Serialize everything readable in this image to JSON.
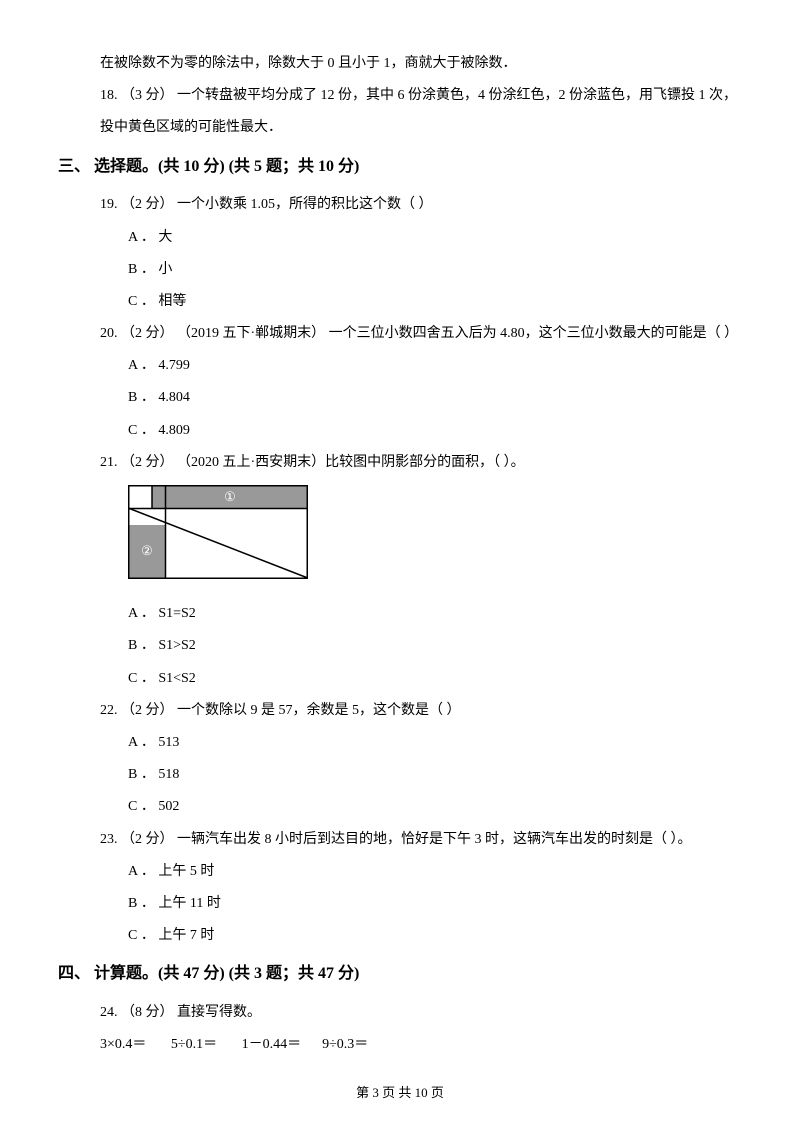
{
  "intro1": "在被除数不为零的除法中，除数大于 0 且小于 1，商就大于被除数．",
  "q18": "18.  （3 分）  一个转盘被平均分成了 12 份，其中 6 份涂黄色，4 份涂红色，2 份涂蓝色，用飞镖投 1 次，投中黄色区域的可能性最大．",
  "section3": "三、 选择题。(共 10 分)  (共 5 题；共 10 分)",
  "q19": {
    "stem": "19.  （2 分）  一个小数乘 1.05，所得的积比这个数（      ）",
    "a": "A ． 大",
    "b": "B ． 小",
    "c": "C ． 相等"
  },
  "q20": {
    "stem": "20.   （2 分）   （2019 五下·郸城期末）   一个三位小数四舍五入后为 4.80，这个三位小数最大的可能是（      ）",
    "a": "A ． 4.799",
    "b": "B ． 4.804",
    "c": "C ． 4.809"
  },
  "q21": {
    "stem": "21.  （2 分）  （2020 五上·西安期末）比较图中阴影部分的面积，（      ）。",
    "a": "A ． S1=S2",
    "b": "B ． S1>S2",
    "c": "C ． S1<S2"
  },
  "q22": {
    "stem": "22.  （2 分）  一个数除以 9 是 57，余数是 5，这个数是（      ）",
    "a": "A ． 513",
    "b": "B ． 518",
    "c": "C ． 502"
  },
  "q23": {
    "stem": "23.  （2 分）  一辆汽车出发 8 小时后到达目的地，恰好是下午 3 时，这辆汽车出发的时刻是（       ）。",
    "a": "A ． 上午 5 时",
    "b": "B ． 上午 11 时",
    "c": "C ． 上午 7 时"
  },
  "section4": "四、 计算题。(共 47 分)  (共 3 题；共 47 分)",
  "q24": {
    "stem": "24.  （8 分）  直接写得数。",
    "calc": "3×0.4＝       5÷0.1＝       1－0.44＝      9÷0.3＝"
  },
  "footer": "第 3 页 共 10 页",
  "diagram": {
    "width": 180,
    "height": 94,
    "border_color": "#000000",
    "fill_color": "#999999",
    "bg_color": "#ffffff",
    "label_color": "#ffffff",
    "top_bar_h": 22,
    "top_left_w": 24,
    "left_col_w": 36,
    "left_top_h": 40,
    "label1": "①",
    "label2": "②"
  }
}
